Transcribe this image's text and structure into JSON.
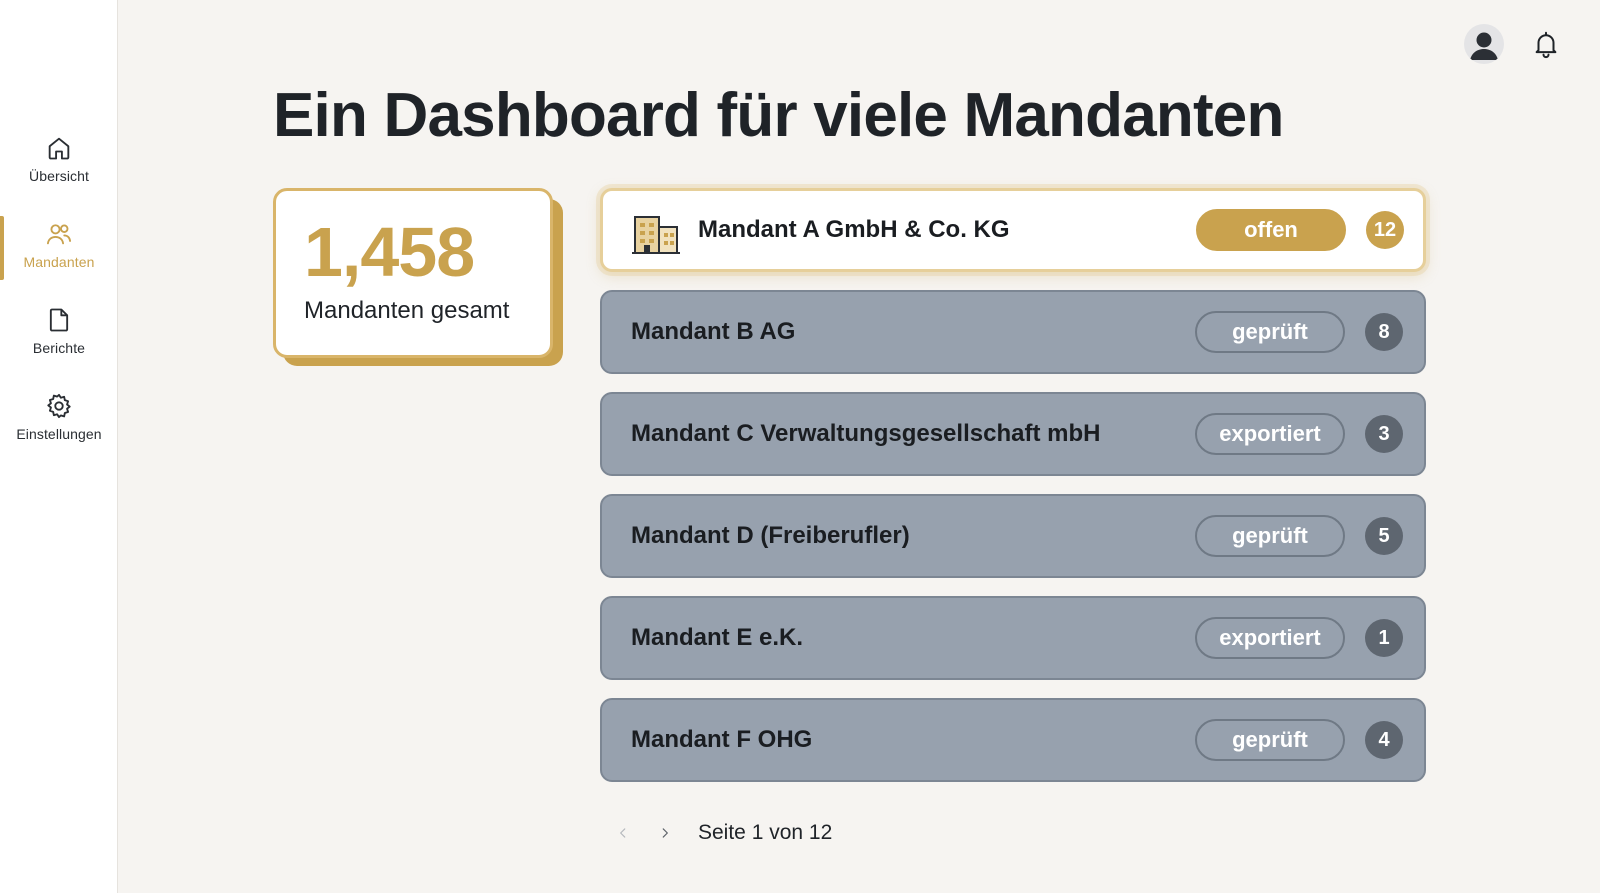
{
  "nav": {
    "items": [
      {
        "label": "Übersicht",
        "icon": "home-icon"
      },
      {
        "label": "Mandanten",
        "icon": "users-icon",
        "active": true
      },
      {
        "label": "Berichte",
        "icon": "document-icon"
      },
      {
        "label": "Einstellungen",
        "icon": "gear-icon"
      }
    ]
  },
  "header": {
    "title": "Ein Dashboard für viele Mandanten",
    "icons": [
      "avatar-icon",
      "bell-icon"
    ]
  },
  "stat": {
    "value": "1,458",
    "label": "Mandanten gesamt"
  },
  "clients": [
    {
      "name": "Mandant A GmbH & Co. KG",
      "status": "offen",
      "count": "12",
      "active": true,
      "icon": "building-icon"
    },
    {
      "name": "Mandant B AG",
      "status": "geprüft",
      "count": "8"
    },
    {
      "name": "Mandant C Verwaltungsgesellschaft mbH",
      "status": "exportiert",
      "count": "3"
    },
    {
      "name": "Mandant D (Freiberufler)",
      "status": "geprüft",
      "count": "5"
    },
    {
      "name": "Mandant E e.K.",
      "status": "exportiert",
      "count": "1"
    },
    {
      "name": "Mandant F OHG",
      "status": "geprüft",
      "count": "4"
    }
  ],
  "pagination": {
    "text": "Seite 1 von 12",
    "prev_icon": "chevron-left-icon",
    "next_icon": "chevron-right-icon"
  },
  "colors": {
    "accent": "#c9a24e",
    "row_bg": "#97a1ae",
    "badge_bg": "#5e6670",
    "page_bg": "#f6f4f1"
  }
}
